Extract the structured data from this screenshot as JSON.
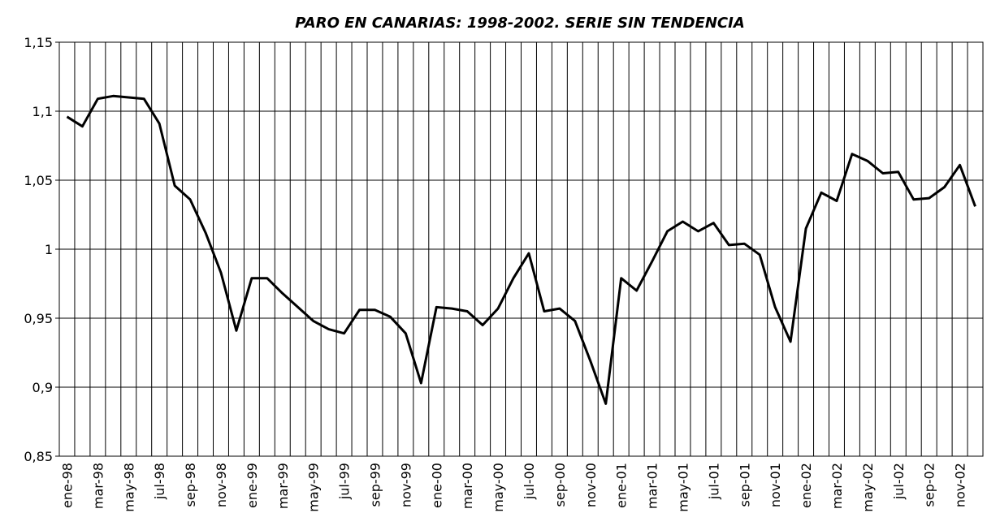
{
  "chart_data": {
    "type": "line",
    "title": "PARO EN CANARIAS: 1998-2002. SERIE SIN TENDENCIA",
    "categories": [
      "ene-98",
      null,
      "mar-98",
      null,
      "may-98",
      null,
      "jul-98",
      null,
      "sep-98",
      null,
      "nov-98",
      null,
      "ene-99",
      null,
      "mar-99",
      null,
      "may-99",
      null,
      "jul-99",
      null,
      "sep-99",
      null,
      "nov-99",
      null,
      "ene-00",
      null,
      "mar-00",
      null,
      "may-00",
      null,
      "jul-00",
      null,
      "sep-00",
      null,
      "nov-00",
      null,
      "ene-01",
      null,
      "mar-01",
      null,
      "may-01",
      null,
      "jul-01",
      null,
      "sep-01",
      null,
      "nov-01",
      null,
      "ene-02",
      null,
      "mar-02",
      null,
      "may-02",
      null,
      "jul-02",
      null,
      "sep-02",
      null,
      "nov-02",
      null
    ],
    "values": [
      1.096,
      1.089,
      1.109,
      1.111,
      1.11,
      1.109,
      1.091,
      1.046,
      1.036,
      1.012,
      0.983,
      0.941,
      0.979,
      0.979,
      0.968,
      0.958,
      0.948,
      0.942,
      0.939,
      0.956,
      0.956,
      0.951,
      0.939,
      0.903,
      0.958,
      0.957,
      0.955,
      0.945,
      0.957,
      0.979,
      0.997,
      0.955,
      0.957,
      0.948,
      0.919,
      0.888,
      0.979,
      0.97,
      0.991,
      1.013,
      1.02,
      1.013,
      1.019,
      1.003,
      1.004,
      0.996,
      0.958,
      0.933,
      1.015,
      1.041,
      1.035,
      1.069,
      1.064,
      1.055,
      1.056,
      1.036,
      1.037,
      1.045,
      1.061,
      1.031
    ],
    "color": "#000000",
    "ylim": [
      0.85,
      1.15
    ],
    "yticks": [
      {
        "value": 0.85,
        "label": "0,85"
      },
      {
        "value": 0.9,
        "label": "0,9"
      },
      {
        "value": 0.95,
        "label": "0,95"
      },
      1,
      {
        "value": 1.05,
        "label": "1,05"
      },
      {
        "value": 1.1,
        "label": "1,1"
      },
      {
        "value": 1.15,
        "label": "1,15"
      }
    ],
    "grid": true
  }
}
